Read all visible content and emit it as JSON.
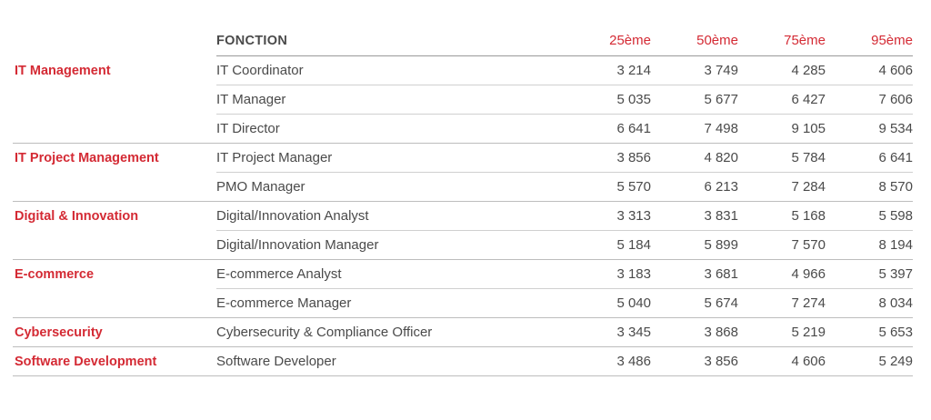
{
  "header": {
    "function_label": "FONCTION",
    "percentiles": [
      "25ème",
      "50ème",
      "75ème",
      "95ème"
    ]
  },
  "rows": [
    {
      "category": "IT Management",
      "function": "IT Coordinator",
      "values": [
        "3 214",
        "3 749",
        "4 285",
        "4 606"
      ]
    },
    {
      "category": "",
      "function": "IT Manager",
      "values": [
        "5 035",
        "5 677",
        "6 427",
        "7 606"
      ]
    },
    {
      "category": "",
      "function": "IT Director",
      "values": [
        "6 641",
        "7 498",
        "9 105",
        "9 534"
      ]
    },
    {
      "category": "IT Project Management",
      "function": "IT Project Manager",
      "values": [
        "3 856",
        "4 820",
        "5 784",
        "6 641"
      ]
    },
    {
      "category": "",
      "function": "PMO Manager",
      "values": [
        "5 570",
        "6 213",
        "7 284",
        "8 570"
      ]
    },
    {
      "category": "Digital & Innovation",
      "function": "Digital/Innovation Analyst",
      "values": [
        "3 313",
        "3 831",
        "5 168",
        "5 598"
      ]
    },
    {
      "category": "",
      "function": "Digital/Innovation Manager",
      "values": [
        "5 184",
        "5 899",
        "7 570",
        "8 194"
      ]
    },
    {
      "category": "E-commerce",
      "function": "E-commerce Analyst",
      "values": [
        "3 183",
        "3 681",
        "4 966",
        "5 397"
      ]
    },
    {
      "category": "",
      "function": "E-commerce Manager",
      "values": [
        "5 040",
        "5 674",
        "7 274",
        "8 034"
      ]
    },
    {
      "category": "Cybersecurity",
      "function": "Cybersecurity & Compliance Officer",
      "values": [
        "3 345",
        "3 868",
        "5 219",
        "5 653"
      ]
    },
    {
      "category": "Software Development",
      "function": "Software Developer",
      "values": [
        "3 486",
        "3 856",
        "4 606",
        "5 249"
      ]
    }
  ],
  "colors": {
    "accent": "#d42a34",
    "text": "#4a4a4a",
    "rule": "#bdbdbd"
  }
}
